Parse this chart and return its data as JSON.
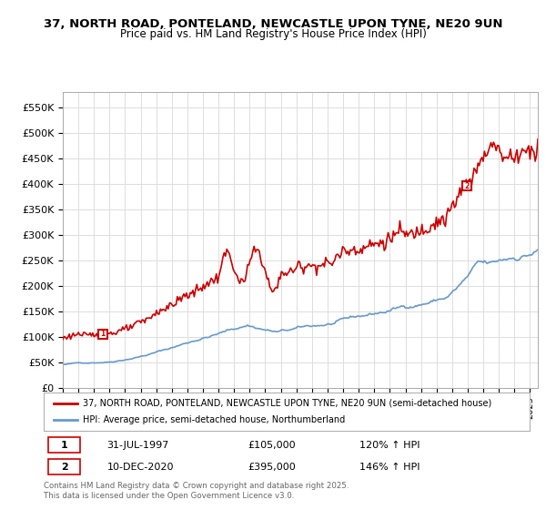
{
  "title_line1": "37, NORTH ROAD, PONTELAND, NEWCASTLE UPON TYNE, NE20 9UN",
  "title_line2": "Price paid vs. HM Land Registry's House Price Index (HPI)",
  "ylim": [
    0,
    580000
  ],
  "yticks": [
    0,
    50000,
    100000,
    150000,
    200000,
    250000,
    300000,
    350000,
    400000,
    450000,
    500000,
    550000
  ],
  "ytick_labels": [
    "£0",
    "£50K",
    "£100K",
    "£150K",
    "£200K",
    "£250K",
    "£300K",
    "£350K",
    "£400K",
    "£450K",
    "£500K",
    "£550K"
  ],
  "legend_red": "37, NORTH ROAD, PONTELAND, NEWCASTLE UPON TYNE, NE20 9UN (semi-detached house)",
  "legend_blue": "HPI: Average price, semi-detached house, Northumberland",
  "marker1_date": "31-JUL-1997",
  "marker1_price": "£105,000",
  "marker1_hpi": "120% ↑ HPI",
  "marker2_date": "10-DEC-2020",
  "marker2_price": "£395,000",
  "marker2_hpi": "146% ↑ HPI",
  "copyright_text": "Contains HM Land Registry data © Crown copyright and database right 2025.\nThis data is licensed under the Open Government Licence v3.0.",
  "red_color": "#cc0000",
  "blue_color": "#6699cc",
  "background_color": "#ffffff",
  "grid_color": "#dddddd"
}
